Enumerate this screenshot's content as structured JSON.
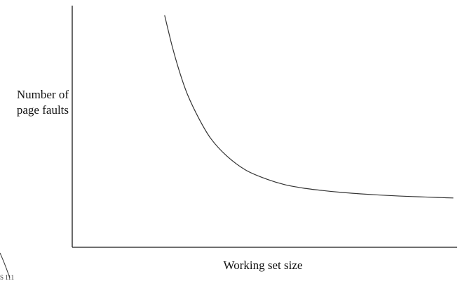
{
  "chart_data": {
    "type": "line",
    "title": "",
    "xlabel": "Working set size",
    "ylabel_lines": [
      "Number of",
      "page faults"
    ],
    "xlim": [
      0,
      100
    ],
    "ylim": [
      0,
      100
    ],
    "x_ticks": false,
    "y_ticks": false,
    "grid": false,
    "series": [
      {
        "name": "",
        "color": "#333333",
        "x": [
          24,
          26,
          28,
          30,
          33,
          36,
          40,
          45,
          50,
          55,
          60,
          65,
          70,
          75,
          80,
          85,
          90,
          95,
          99
        ],
        "y": [
          96,
          83,
          72,
          63,
          53,
          45,
          38,
          32,
          28.5,
          26,
          24.5,
          23.5,
          22.7,
          22.1,
          21.6,
          21.2,
          20.9,
          20.6,
          20.4
        ]
      }
    ]
  },
  "page_marks": {
    "corner_note": "S 111"
  }
}
